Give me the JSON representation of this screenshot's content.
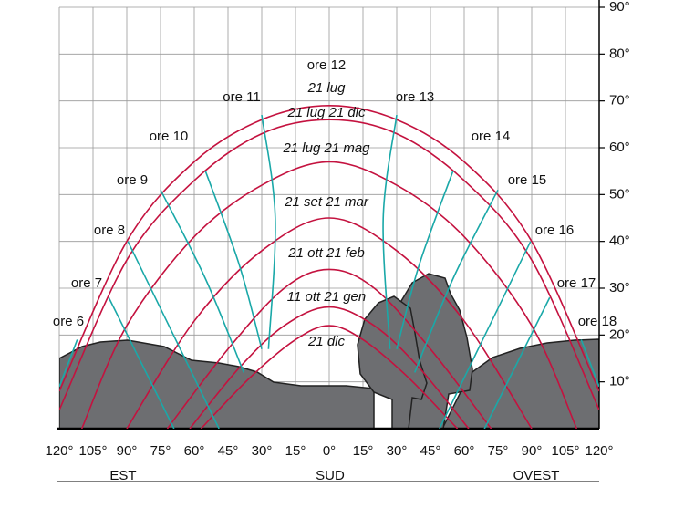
{
  "chart_data": {
    "type": "sunpath",
    "xlim": [
      -120,
      120
    ],
    "ylim": [
      0,
      90
    ],
    "grid": true,
    "xticks": [
      {
        "value": -120,
        "label": "120°"
      },
      {
        "value": -105,
        "label": "105°"
      },
      {
        "value": -90,
        "label": "90°"
      },
      {
        "value": -75,
        "label": "75°"
      },
      {
        "value": -60,
        "label": "60°"
      },
      {
        "value": -45,
        "label": "45°"
      },
      {
        "value": -30,
        "label": "30°"
      },
      {
        "value": -15,
        "label": "15°"
      },
      {
        "value": 0,
        "label": "0°"
      },
      {
        "value": 15,
        "label": "15°"
      },
      {
        "value": 30,
        "label": "30°"
      },
      {
        "value": 45,
        "label": "45°"
      },
      {
        "value": 60,
        "label": "60°"
      },
      {
        "value": 75,
        "label": "75°"
      },
      {
        "value": 90,
        "label": "90°"
      },
      {
        "value": 105,
        "label": "105°"
      },
      {
        "value": 120,
        "label": "120°"
      }
    ],
    "yticks": [
      {
        "value": 10,
        "label": "10°"
      },
      {
        "value": 20,
        "label": "20°"
      },
      {
        "value": 30,
        "label": "30°"
      },
      {
        "value": 40,
        "label": "40°"
      },
      {
        "value": 50,
        "label": "50°"
      },
      {
        "value": 60,
        "label": "60°"
      },
      {
        "value": 70,
        "label": "70°"
      },
      {
        "value": 80,
        "label": "80°"
      },
      {
        "value": 90,
        "label": "90°"
      }
    ],
    "x_groups": [
      "EST",
      "SUD",
      "OVEST"
    ],
    "arcs": [
      {
        "name": "21 lug",
        "color": "#c4123f",
        "x": [
          -120,
          -90,
          -60,
          -30,
          0,
          30,
          60,
          90,
          120
        ],
        "y": [
          8,
          40,
          57,
          66,
          69,
          66,
          57,
          40,
          8
        ]
      },
      {
        "name": "21 lug  21 dic",
        "color": "#c4123f",
        "x": [
          -120,
          -90,
          -60,
          -30,
          0,
          30,
          60,
          90,
          120
        ],
        "y": [
          4,
          36,
          53,
          63,
          66,
          63,
          53,
          36,
          4
        ]
      },
      {
        "name": "21 lug  21 mag",
        "color": "#c4123f",
        "x": [
          -110,
          -90,
          -60,
          -30,
          0,
          30,
          60,
          90,
          110
        ],
        "y": [
          0,
          22,
          41,
          52,
          57,
          52,
          41,
          22,
          0
        ]
      },
      {
        "name": "21 set  21 mar",
        "color": "#c4123f",
        "x": [
          -90,
          -60,
          -30,
          0,
          30,
          60,
          90
        ],
        "y": [
          0,
          23,
          38,
          45,
          38,
          23,
          0
        ]
      },
      {
        "name": "21  ott  21 feb",
        "color": "#c4123f",
        "x": [
          -72,
          -45,
          -20,
          0,
          20,
          45,
          72
        ],
        "y": [
          0,
          17,
          30,
          34,
          30,
          17,
          0
        ]
      },
      {
        "name": "11  ott  21 gen",
        "color": "#c4123f",
        "x": [
          -62,
          -40,
          -20,
          0,
          20,
          40,
          62
        ],
        "y": [
          0,
          13,
          22,
          26,
          22,
          13,
          0
        ]
      },
      {
        "name": "21 dic",
        "color": "#c4123f",
        "x": [
          -57,
          -35,
          -15,
          0,
          15,
          35,
          57
        ],
        "y": [
          0,
          11,
          19,
          22,
          19,
          11,
          0
        ]
      }
    ],
    "hours": [
      {
        "name": "ore  6",
        "color": "#1aa8a8",
        "x": [
          -112,
          -120
        ],
        "y": [
          19,
          9
        ]
      },
      {
        "name": "ore  7",
        "color": "#1aa8a8",
        "x": [
          -98,
          -69
        ],
        "y": [
          28,
          0
        ]
      },
      {
        "name": "ore  8",
        "color": "#1aa8a8",
        "x": [
          -89.5,
          -49
        ],
        "y": [
          40,
          0
        ]
      },
      {
        "name": "ore  9",
        "color": "#1aa8a8",
        "x": [
          -75,
          -55,
          -38
        ],
        "y": [
          51,
          32,
          12
        ]
      },
      {
        "name": "ore  10",
        "color": "#1aa8a8",
        "x": [
          -55,
          -40,
          -30
        ],
        "y": [
          55,
          35,
          17
        ]
      },
      {
        "name": "ore  11",
        "color": "#1aa8a8",
        "x": [
          -30,
          -24,
          -27
        ],
        "y": [
          67,
          45,
          17
        ]
      },
      {
        "name": "ore 12",
        "color": "#1aa8a8",
        "x": [],
        "y": []
      },
      {
        "name": "ore  13",
        "color": "#1aa8a8",
        "x": [
          30,
          24,
          27
        ],
        "y": [
          67,
          45,
          17
        ]
      },
      {
        "name": "ore  14",
        "color": "#1aa8a8",
        "x": [
          55,
          40,
          30
        ],
        "y": [
          55,
          35,
          17
        ]
      },
      {
        "name": "ore  15",
        "color": "#1aa8a8",
        "x": [
          75,
          55,
          38
        ],
        "y": [
          51,
          32,
          12
        ]
      },
      {
        "name": "ore  16",
        "color": "#1aa8a8",
        "x": [
          89.5,
          49
        ],
        "y": [
          40,
          0
        ]
      },
      {
        "name": "ore  17",
        "color": "#1aa8a8",
        "x": [
          98,
          69
        ],
        "y": [
          28,
          0
        ]
      },
      {
        "name": "ore 18",
        "color": "#1aa8a8",
        "x": [
          112,
          120
        ],
        "y": [
          19,
          9
        ]
      }
    ]
  }
}
